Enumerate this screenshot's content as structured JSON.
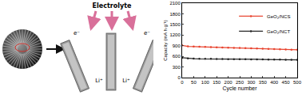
{
  "chart_data": {
    "type": "line",
    "x_label": "Cycle number",
    "y_label": "Capacity (mA h g⁻¹)",
    "xlim": [
      0,
      500
    ],
    "xticks": [
      0,
      50,
      100,
      150,
      200,
      250,
      300,
      350,
      400,
      450,
      500
    ],
    "ylim": [
      0,
      2100
    ],
    "yticks": [
      0,
      300,
      600,
      900,
      1200,
      1500,
      1800,
      2100
    ],
    "legend": "upper right",
    "grid": false,
    "series": [
      {
        "name": "GeO₂/NCS",
        "color": "#e8432e",
        "marker": "circle",
        "x": [
          0,
          25,
          50,
          75,
          100,
          125,
          150,
          175,
          200,
          225,
          250,
          275,
          300,
          325,
          350,
          375,
          400,
          425,
          450,
          475,
          500
        ],
        "values": [
          910,
          880,
          875,
          870,
          865,
          860,
          855,
          850,
          845,
          840,
          835,
          830,
          825,
          820,
          815,
          810,
          805,
          800,
          795,
          790,
          785
        ]
      },
      {
        "name": "GeO₂/NCT",
        "color": "#222222",
        "marker": "circle",
        "x": [
          0,
          25,
          50,
          75,
          100,
          125,
          150,
          175,
          200,
          225,
          250,
          275,
          300,
          325,
          350,
          375,
          400,
          425,
          450,
          475,
          500
        ],
        "values": [
          560,
          540,
          535,
          530,
          530,
          528,
          525,
          525,
          522,
          520,
          520,
          518,
          515,
          515,
          512,
          510,
          510,
          508,
          505,
          505,
          502
        ]
      }
    ]
  },
  "diagram": {
    "electrolyte": "Electrolyte",
    "electron": "e⁻",
    "lithium_ion": "Li⁺"
  }
}
